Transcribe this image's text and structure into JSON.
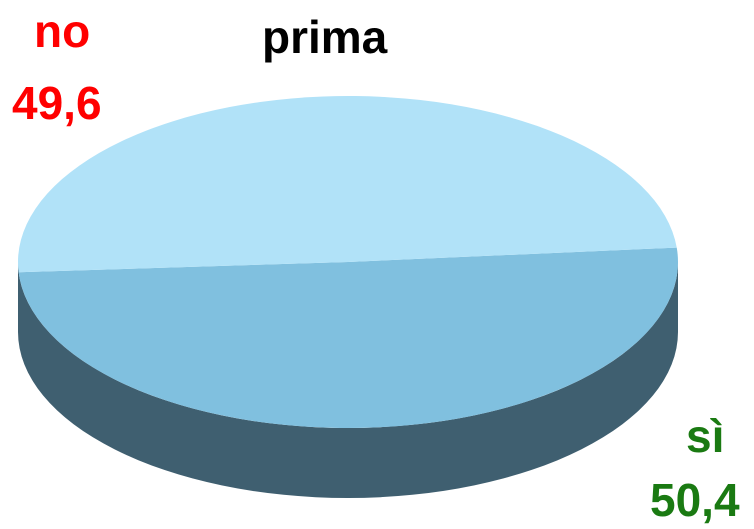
{
  "chart_data": {
    "type": "pie",
    "style": "3d",
    "title": "prima",
    "slices": [
      {
        "name": "no",
        "value": "49,6",
        "numeric": 49.6,
        "label_color": "#ff0000",
        "fill_top": "#b1e2f8",
        "fill_side": "#5b87a1"
      },
      {
        "name": "sì",
        "value": "50,4",
        "numeric": 50.4,
        "label_color": "#1a7a12",
        "fill_top": "#80c0df",
        "fill_side": "#3f5f70"
      }
    ]
  }
}
